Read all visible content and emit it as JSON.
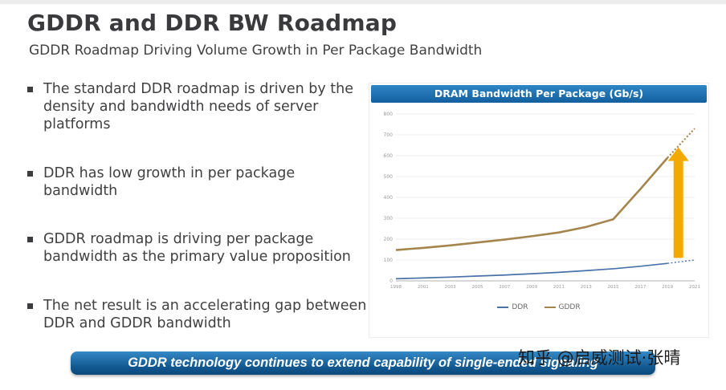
{
  "slide": {
    "title": "GDDR and DDR BW Roadmap",
    "subtitle": "GDDR Roadmap Driving Volume Growth in Per Package Bandwidth",
    "bullets": [
      "The standard DDR roadmap is driven by the density and bandwidth needs of server platforms",
      "DDR has low growth in per package bandwidth",
      "GDDR roadmap is driving per package bandwidth as the primary value proposition",
      "The net result is an accelerating gap between DDR and GDDR bandwidth"
    ],
    "banner_text": "GDDR technology continues to extend capability of single-ended signaling"
  },
  "watermark": "知乎 @启威测试·张晴",
  "colors": {
    "header_blue": "#135f9e",
    "banner_blue": "#11568e",
    "title_gray": "#3a3a3c",
    "arrow_gold": "#f2a900"
  },
  "chart_data": {
    "type": "line",
    "title": "DRAM Bandwidth Per Package (Gb/s)",
    "x": [
      "1998",
      "2001",
      "2003",
      "2005",
      "2007",
      "2009",
      "2011",
      "2013",
      "2015",
      "2017",
      "2019",
      "2021"
    ],
    "series": [
      {
        "name": "DDR",
        "color": "#4a72a8",
        "values": [
          10,
          14,
          18,
          23,
          28,
          34,
          41,
          49,
          58,
          70,
          84,
          100
        ],
        "dashed_from": 10
      },
      {
        "name": "GDDR",
        "color": "#a5854e",
        "values": [
          148,
          158,
          170,
          184,
          198,
          214,
          232,
          258,
          295,
          440,
          590,
          730
        ],
        "dashed_from": 10
      }
    ],
    "ylim": [
      0,
      800
    ],
    "ytick_step": 100,
    "grid": true,
    "legend_position": "bottom",
    "annotation": {
      "type": "up-arrow",
      "color": "#f2a900",
      "x_index": 10.4,
      "y_from": 110,
      "y_to": 640
    }
  }
}
